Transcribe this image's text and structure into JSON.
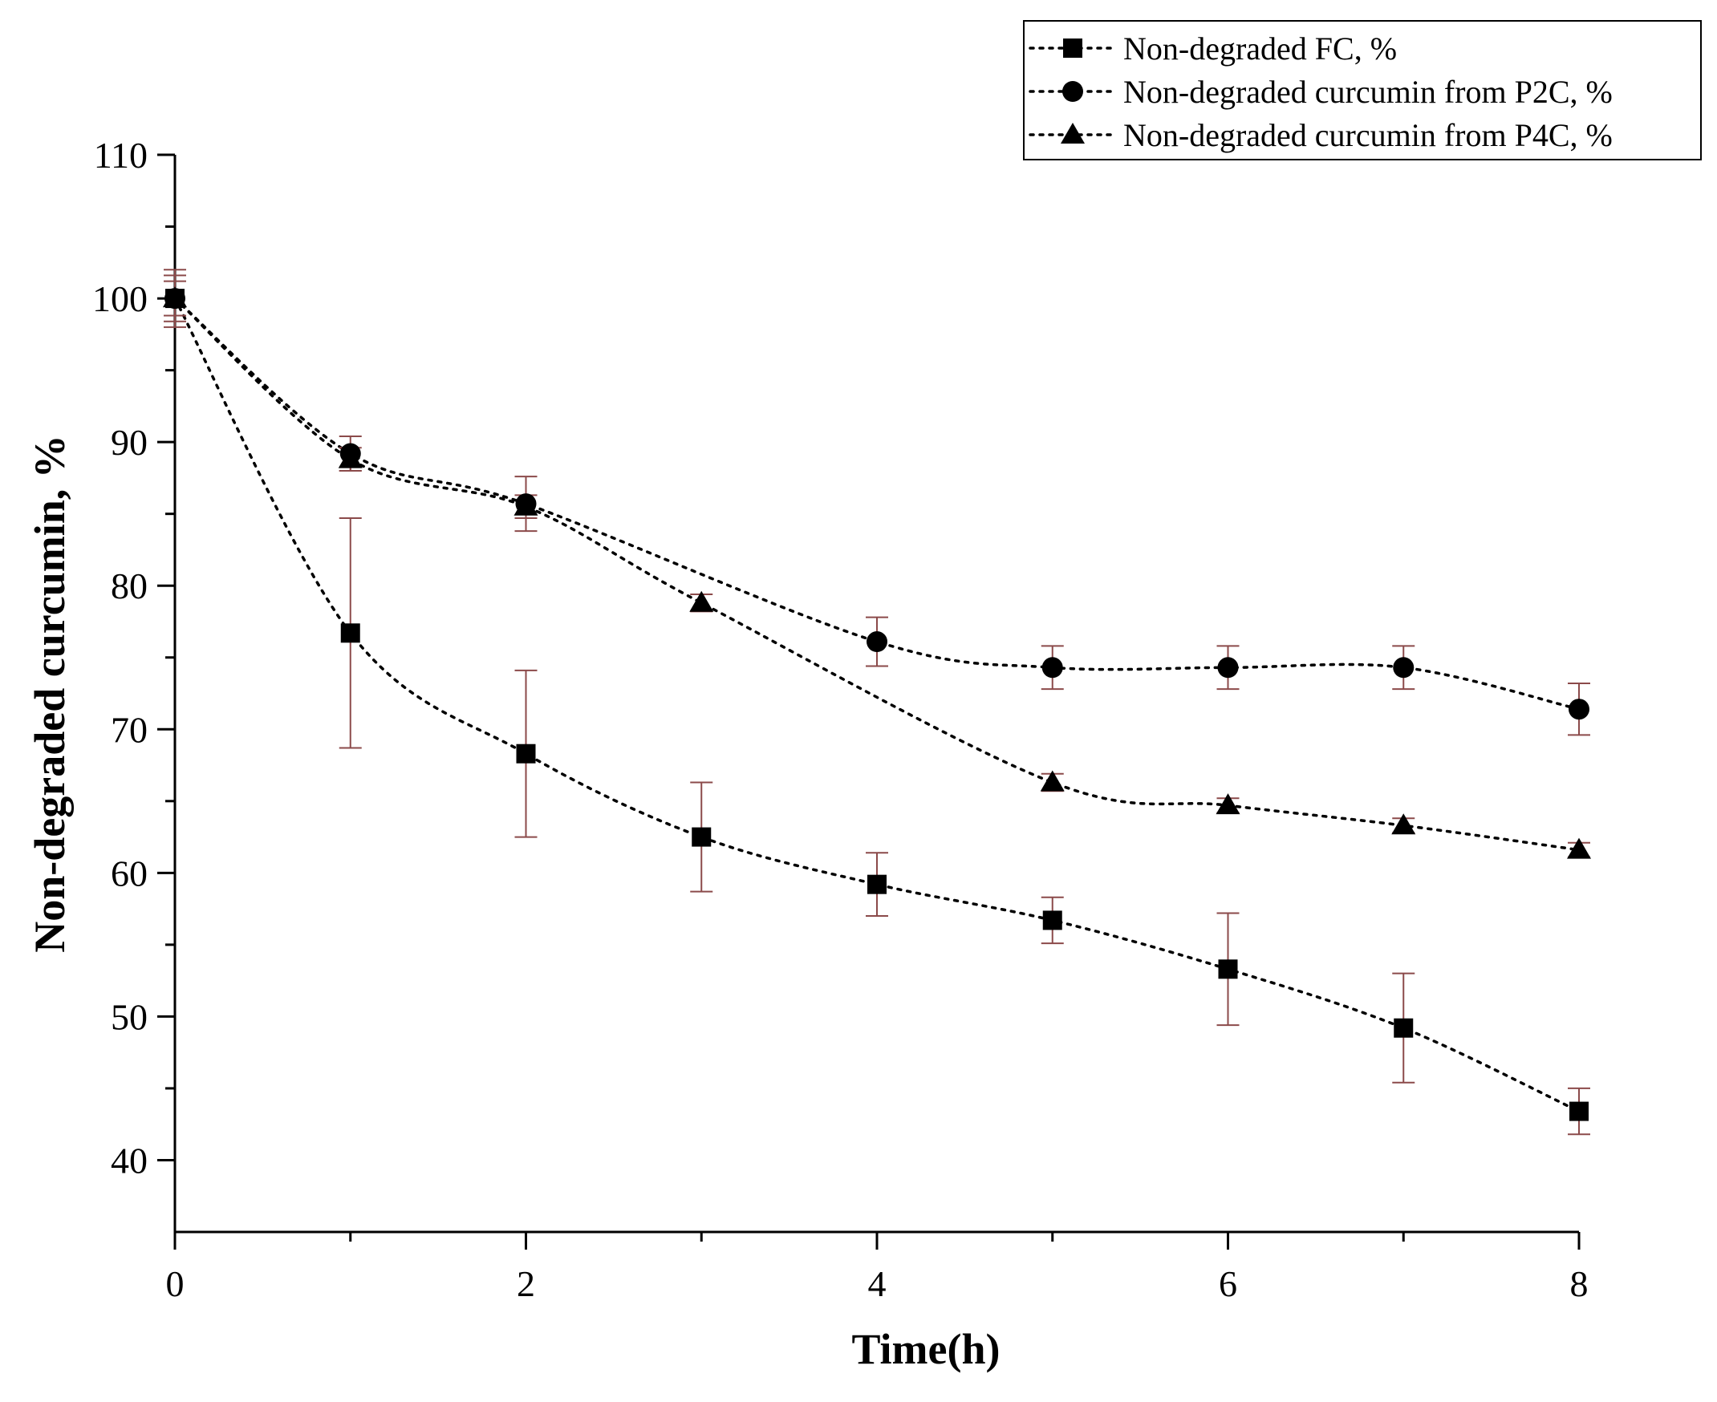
{
  "chart_data": {
    "type": "line",
    "title": "",
    "xlabel": "Time(h)",
    "ylabel": "Non-degraded curcumin, %",
    "xlim": [
      0,
      8
    ],
    "ylim": [
      35,
      110
    ],
    "xticks": [
      0,
      2,
      4,
      6,
      8
    ],
    "xticks_minor": [
      1,
      3,
      5,
      7
    ],
    "yticks": [
      40,
      50,
      60,
      70,
      80,
      90,
      100,
      110
    ],
    "yticks_minor": [
      45,
      55,
      65,
      75,
      85,
      95,
      105
    ],
    "grid": false,
    "legend_position": "top-right",
    "colors": {
      "marker": "#000000",
      "line": "#000000",
      "errorbar": "#8b4a4a"
    },
    "series": [
      {
        "name": "Non-degraded FC, %",
        "marker": "square",
        "x": [
          0,
          1,
          2,
          3,
          4,
          5,
          6,
          7,
          8
        ],
        "y": [
          100,
          76.7,
          68.3,
          62.5,
          59.2,
          56.7,
          53.3,
          49.2,
          43.4
        ],
        "err": [
          2.0,
          8.0,
          5.8,
          3.8,
          2.2,
          1.6,
          3.9,
          3.8,
          1.6
        ]
      },
      {
        "name": "Non-degraded curcumin from P2C, %",
        "marker": "circle",
        "x": [
          0,
          1,
          2,
          4,
          5,
          6,
          7,
          8
        ],
        "y": [
          100,
          89.2,
          85.7,
          76.1,
          74.3,
          74.3,
          74.3,
          71.4
        ],
        "err": [
          1.6,
          1.2,
          1.9,
          1.7,
          1.5,
          1.5,
          1.5,
          1.8
        ]
      },
      {
        "name": "Non-degraded curcumin from P4C, %",
        "marker": "triangle",
        "x": [
          0,
          1,
          2,
          3,
          5,
          6,
          7,
          8
        ],
        "y": [
          100,
          88.8,
          85.5,
          78.8,
          66.3,
          64.7,
          63.3,
          61.6
        ],
        "err": [
          1.2,
          0.8,
          0.8,
          0.6,
          0.6,
          0.5,
          0.5,
          0.5
        ]
      }
    ]
  }
}
